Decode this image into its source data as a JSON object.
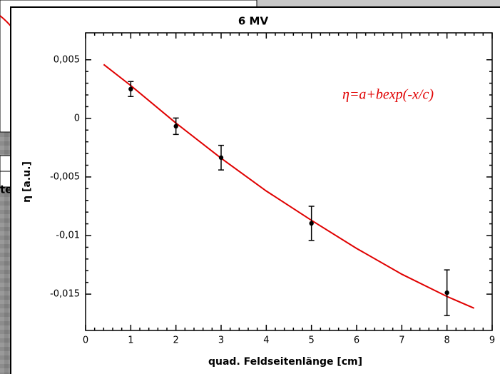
{
  "background_fragment": "te",
  "chart_data": {
    "type": "scatter",
    "title": "6 MV",
    "xlabel": "quad. Feldseitenlänge [cm]",
    "ylabel": "η [a.u.]",
    "annotation": "η=a+bexp(-x/c)",
    "x": [
      1,
      2,
      3,
      5,
      8
    ],
    "values": [
      0.0025,
      -0.00067,
      -0.00335,
      -0.00896,
      -0.01488
    ],
    "errors": [
      0.00064,
      0.0007,
      0.00105,
      0.00146,
      0.00195
    ],
    "color": "#000000",
    "fit": {
      "x": [
        0.4,
        1,
        2,
        3,
        4,
        5,
        6,
        7,
        8,
        8.6
      ],
      "values": [
        0.0046,
        0.0028,
        -0.0004,
        -0.0034,
        -0.0062,
        -0.0087,
        -0.0111,
        -0.0133,
        -0.0152,
        -0.0162
      ],
      "color": "#e00000"
    },
    "xlim": [
      0,
      9
    ],
    "xticks": [
      0,
      1,
      2,
      3,
      4,
      5,
      6,
      7,
      8,
      9
    ],
    "ylim": [
      -0.0181,
      0.0073
    ],
    "yticks": [
      {
        "value": -0.015,
        "label": "-0,015"
      },
      {
        "value": -0.01,
        "label": "-0,01"
      },
      {
        "value": -0.005,
        "label": "-0,005"
      },
      0,
      {
        "value": 0.005,
        "label": "0,005"
      }
    ]
  }
}
